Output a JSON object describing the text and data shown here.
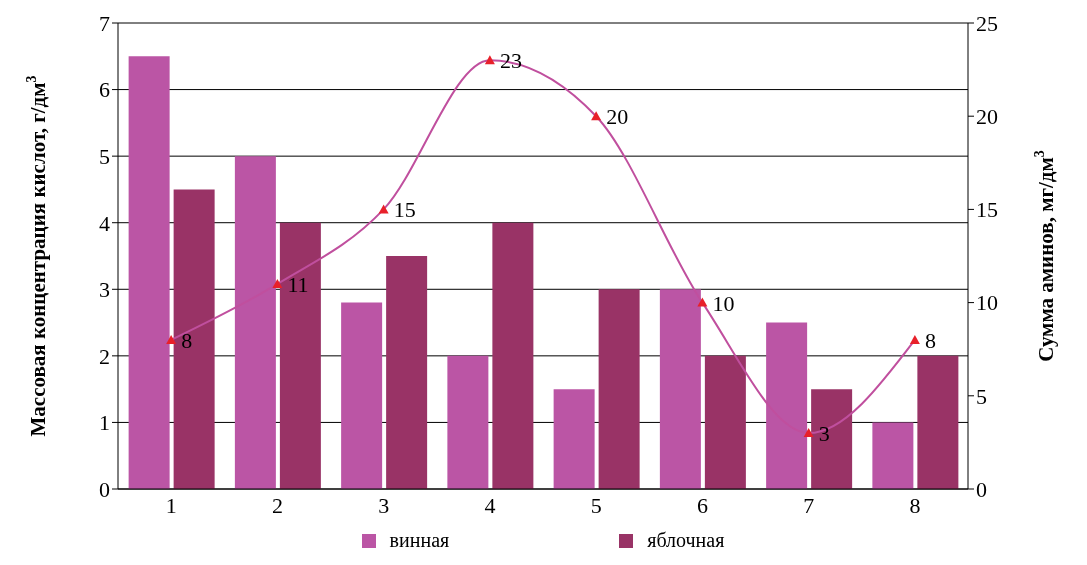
{
  "chart_data": {
    "type": "bar",
    "categories": [
      "1",
      "2",
      "3",
      "4",
      "5",
      "6",
      "7",
      "8"
    ],
    "series": [
      {
        "name": "винная",
        "color": "#bb55a5",
        "values": [
          6.5,
          5,
          2.8,
          2,
          1.5,
          3,
          2.5,
          1
        ]
      },
      {
        "name": "яблочная",
        "color": "#993366",
        "values": [
          4.5,
          4,
          3.5,
          4,
          3,
          2,
          1.5,
          2
        ]
      },
      {
        "type": "line",
        "axis": "y2",
        "color": "#c04f9e",
        "values": [
          8,
          11,
          15,
          23,
          20,
          10,
          3,
          8
        ],
        "value_labels": [
          "8",
          "11",
          "15",
          "23",
          "20",
          "10",
          "3",
          "8"
        ],
        "marker": "triangle"
      }
    ],
    "ylabel": "Массовая концентрация кислот, г/дм$^{3}$",
    "y2label": "Сумма аминов, мг/дм$^{3}$",
    "ylim": [
      0,
      7
    ],
    "yticks": [
      0,
      1,
      2,
      3,
      4,
      5,
      6,
      7
    ],
    "y2lim": [
      0,
      25
    ],
    "y2ticks": [
      0,
      5,
      10,
      15,
      20,
      25
    ],
    "grid": "y",
    "legend": "bottom"
  }
}
